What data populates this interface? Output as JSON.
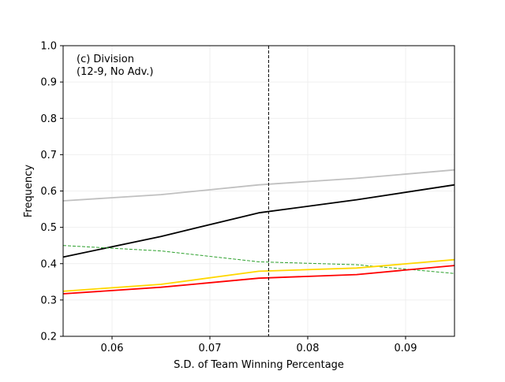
{
  "chart_data": {
    "type": "line",
    "title": "",
    "xlabel": "S.D. of Team Winning Percentage",
    "ylabel": "Frequency",
    "xlim": [
      0.055,
      0.095
    ],
    "ylim": [
      0.2,
      1.0
    ],
    "xticks": [
      0.06,
      0.07,
      0.08,
      0.09
    ],
    "xtick_labels": [
      "0.06",
      "0.07",
      "0.08",
      "0.09"
    ],
    "yticks": [
      0.2,
      0.3,
      0.4,
      0.5,
      0.6,
      0.7,
      0.8,
      0.9,
      1.0
    ],
    "ytick_labels": [
      "0.2",
      "0.3",
      "0.4",
      "0.5",
      "0.6",
      "0.7",
      "0.8",
      "0.9",
      "1.0"
    ],
    "grid": true,
    "legend": "none",
    "annotation": {
      "lines": [
        "(c) Division",
        "(12-9, No Adv.)"
      ],
      "placement": "top-left"
    },
    "reference_line": {
      "x": 0.076,
      "style": "dashed",
      "color": "#000000"
    },
    "series": [
      {
        "color": "#c0c0c0",
        "style": "solid",
        "x": [
          0.055,
          0.065,
          0.075,
          0.085,
          0.095
        ],
        "values": [
          0.573,
          0.59,
          0.617,
          0.635,
          0.658
        ]
      },
      {
        "color": "#000000",
        "style": "solid",
        "x": [
          0.055,
          0.065,
          0.075,
          0.085,
          0.095
        ],
        "values": [
          0.418,
          0.475,
          0.54,
          0.576,
          0.617
        ]
      },
      {
        "color": "#2ca02c",
        "style": "dashed",
        "x": [
          0.055,
          0.065,
          0.075,
          0.085,
          0.095
        ],
        "values": [
          0.45,
          0.435,
          0.405,
          0.397,
          0.373
        ]
      },
      {
        "color": "#ffd700",
        "style": "solid",
        "x": [
          0.055,
          0.065,
          0.075,
          0.085,
          0.095
        ],
        "values": [
          0.324,
          0.343,
          0.379,
          0.388,
          0.411
        ]
      },
      {
        "color": "#ff0000",
        "style": "solid",
        "x": [
          0.055,
          0.065,
          0.075,
          0.085,
          0.095
        ],
        "values": [
          0.317,
          0.335,
          0.36,
          0.37,
          0.395
        ]
      }
    ]
  }
}
